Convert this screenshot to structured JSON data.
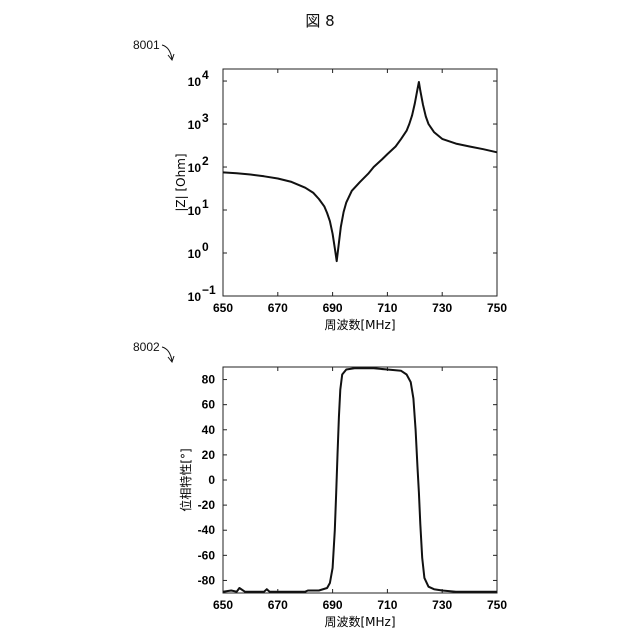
{
  "figure_title": "図 8",
  "chart_data": [
    {
      "ref": "8001",
      "type": "line",
      "xlabel": "周波数[MHz]",
      "ylabel": "|Z| [Ohm]",
      "yscale": "log",
      "xlim": [
        650,
        750
      ],
      "ylim_log10": [
        -1,
        4.28
      ],
      "xticks": [
        "650",
        "670",
        "690",
        "710",
        "730",
        "750"
      ],
      "yticks": [
        {
          "base": "10",
          "exp": "4"
        },
        {
          "base": "10",
          "exp": "3"
        },
        {
          "base": "10",
          "exp": "2"
        },
        {
          "base": "10",
          "exp": "1"
        },
        {
          "base": "10",
          "exp": "0"
        },
        {
          "base": "10",
          "exp": "−1"
        }
      ],
      "ytick_values_log10": [
        4,
        3,
        2,
        1,
        0,
        -1
      ],
      "x": [
        650,
        655,
        660,
        665,
        670,
        675,
        680,
        683,
        685,
        687,
        688,
        689,
        690,
        690.8,
        691.5,
        692.2,
        693,
        694,
        695,
        697,
        700,
        703,
        705,
        708,
        710,
        713,
        715,
        717,
        718,
        719,
        720,
        721,
        721.5,
        722,
        723,
        724,
        725,
        727,
        730,
        735,
        740,
        745,
        750
      ],
      "y": [
        75,
        72,
        67,
        61,
        54,
        45,
        33,
        25,
        18,
        12,
        8.5,
        5.5,
        2.8,
        1.3,
        0.65,
        1.5,
        4,
        9,
        15,
        28,
        45,
        70,
        100,
        150,
        200,
        300,
        450,
        700,
        1000,
        1600,
        3000,
        6500,
        9500,
        6000,
        2800,
        1500,
        1000,
        650,
        450,
        350,
        300,
        260,
        220
      ]
    },
    {
      "ref": "8002",
      "type": "line",
      "xlabel": "周波数[MHz]",
      "ylabel": "位相特性[°]",
      "xlim": [
        650,
        750
      ],
      "ylim": [
        -90,
        90
      ],
      "xticks": [
        "650",
        "670",
        "690",
        "710",
        "730",
        "750"
      ],
      "yticks": [
        "80",
        "60",
        "40",
        "20",
        "0",
        "-20",
        "-40",
        "-60",
        "-80"
      ],
      "ytick_values": [
        80,
        60,
        40,
        20,
        0,
        -20,
        -40,
        -60,
        -80
      ],
      "x": [
        650,
        653,
        655,
        656,
        658,
        665,
        666,
        667,
        675,
        680,
        681,
        685,
        688,
        689,
        690,
        690.8,
        691.3,
        691.8,
        692.3,
        692.8,
        693.5,
        695,
        698,
        700,
        705,
        710,
        715,
        717,
        718.5,
        719.5,
        720.3,
        721,
        721.5,
        722,
        722.7,
        723.5,
        725,
        727,
        730,
        735,
        740,
        750
      ],
      "y": [
        -89,
        -88,
        -89,
        -86,
        -89,
        -89,
        -87,
        -89,
        -89,
        -89,
        -88,
        -88,
        -86,
        -82,
        -70,
        -40,
        -10,
        20,
        50,
        72,
        84,
        88,
        89,
        89,
        89,
        88,
        87,
        84,
        78,
        65,
        40,
        10,
        -10,
        -35,
        -62,
        -78,
        -85,
        -87,
        -88,
        -89,
        -89,
        -89
      ]
    }
  ]
}
